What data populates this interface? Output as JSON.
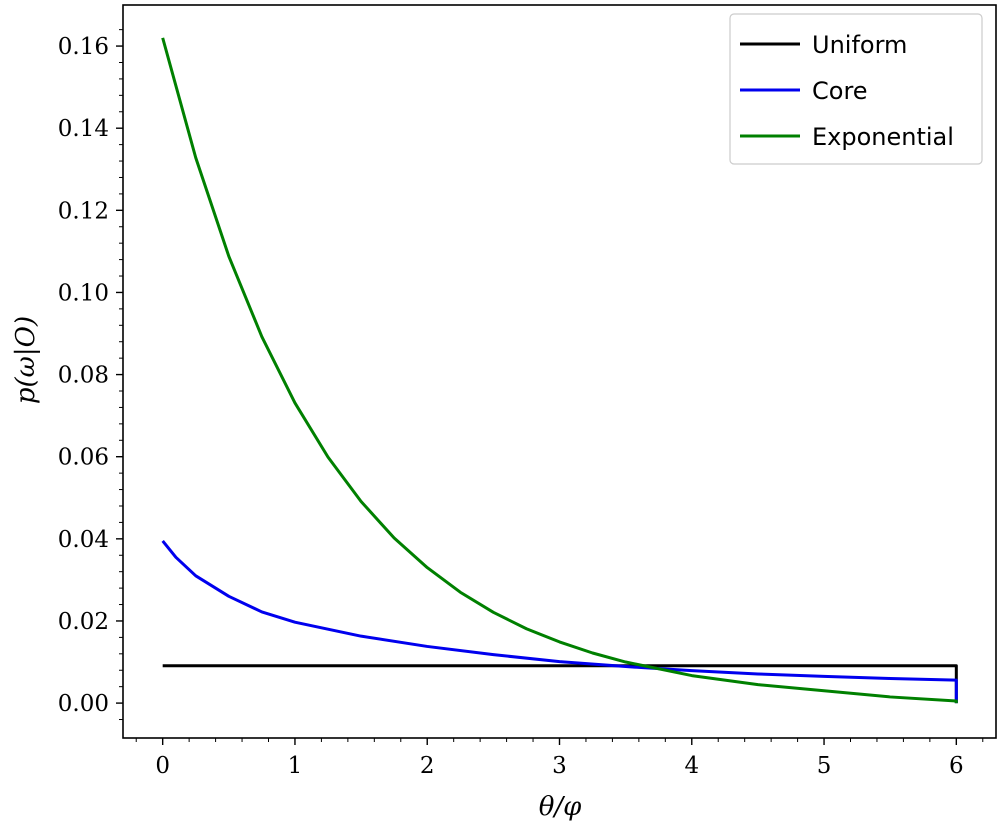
{
  "chart_data": {
    "type": "line",
    "xlabel": "θ/φ",
    "ylabel": "p(ω|O)",
    "xlim": [
      -0.3,
      6.3
    ],
    "ylim": [
      -0.0085,
      0.17
    ],
    "x_ticks": [
      "0",
      "1",
      "2",
      "3",
      "4",
      "5",
      "6"
    ],
    "y_ticks": [
      "0.00",
      "0.02",
      "0.04",
      "0.06",
      "0.08",
      "0.10",
      "0.12",
      "0.14",
      "0.16"
    ],
    "legend_position": "top-right",
    "grid": false,
    "series": [
      {
        "name": "Uniform",
        "color": "#000000",
        "x": [
          0,
          6,
          6
        ],
        "y": [
          0.0091,
          0.0091,
          0.0
        ]
      },
      {
        "name": "Core",
        "color": "#0000ee",
        "x": [
          0,
          0.1,
          0.25,
          0.5,
          0.75,
          1,
          1.5,
          2,
          2.5,
          3,
          3.5,
          4,
          4.5,
          5,
          5.5,
          6,
          6
        ],
        "y": [
          0.0395,
          0.0355,
          0.031,
          0.026,
          0.0222,
          0.0197,
          0.0163,
          0.0138,
          0.0118,
          0.0101,
          0.0089,
          0.0079,
          0.0071,
          0.0065,
          0.006,
          0.0056,
          0.0
        ]
      },
      {
        "name": "Exponential",
        "color": "#008000",
        "x": [
          0,
          0.25,
          0.5,
          0.75,
          1,
          1.25,
          1.5,
          1.75,
          2,
          2.25,
          2.5,
          2.75,
          3,
          3.25,
          3.5,
          4,
          4.5,
          5,
          5.5,
          6,
          6
        ],
        "y": [
          0.162,
          0.1328,
          0.1088,
          0.0892,
          0.0731,
          0.0599,
          0.0491,
          0.0402,
          0.033,
          0.027,
          0.0221,
          0.0181,
          0.0149,
          0.0122,
          0.01,
          0.0067,
          0.0045,
          0.003,
          0.0015,
          0.0005,
          0.0
        ]
      }
    ]
  }
}
